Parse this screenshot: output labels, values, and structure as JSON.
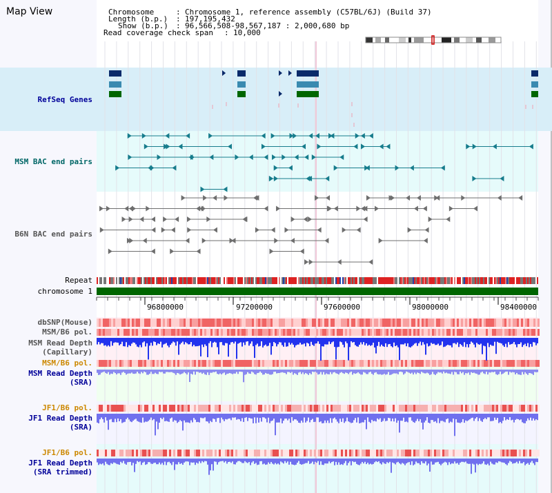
{
  "view": {
    "title": "Map View"
  },
  "header": {
    "chromosome_label": "Chromosome",
    "chromosome_value": "Chromosome 1, reference assembly (C57BL/6J) (Build 37)",
    "length_label": "Length (b.p.)",
    "length_value": "197,195,432",
    "show_label": "Show (b.p.)",
    "show_value": "96,566,508-98,567,187 : 2,000,680 bp",
    "coverage_label": "Read coverage check span",
    "coverage_value": "10,000"
  },
  "tracks": {
    "refseq": "RefSeq Genes",
    "msm_bac": "MSM BAC end pairs",
    "b6n_bac": "B6N BAC end pairs",
    "repeat": "Repeat",
    "chromosome": "chromosome 1",
    "dbsnp": "dbSNP(Mouse)",
    "msmb6_pol_1": "MSM/B6 pol.",
    "msm_depth_cap_1": "MSM Read Depth",
    "msm_depth_cap_2": "(Capillary)",
    "msmb6_pol_2": "MSM/B6 pol.",
    "msm_depth_sra_1": "MSM Read Depth",
    "msm_depth_sra_2": "(SRA)",
    "jf1b6_pol_1": "JF1/B6 pol.",
    "jf1_depth_sra_1": "JF1 Read Depth",
    "jf1_depth_sra_2": "(SRA)",
    "jf1b6_pol_2": "JF1/B6 pol.",
    "jf1_depth_trim_1": "JF1 Read Depth",
    "jf1_depth_trim_2": "(SRA trimmed)"
  },
  "axis": {
    "ticks": [
      "96800000",
      "97200000",
      "97600000",
      "98000000",
      "98400000"
    ]
  },
  "colors": {
    "label_black": "#000000",
    "label_blue": "#000099",
    "label_teal": "#006666",
    "label_gray": "#555555",
    "label_orange": "#cc8800",
    "refseq_bg": "#d8eef8",
    "bac_bg": "#e6fbfb",
    "chromosome_green": "#006600"
  }
}
